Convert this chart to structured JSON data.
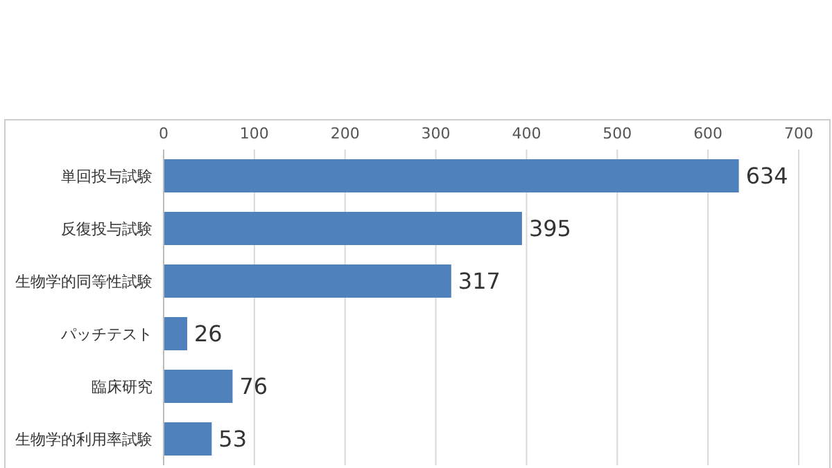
{
  "chart_data": {
    "type": "bar",
    "orientation": "horizontal",
    "categories": [
      "単回投与試験",
      "反復投与試験",
      "生物学的同等性試験",
      "パッチテスト",
      "臨床研究",
      "生物学的利用率試験"
    ],
    "values": [
      634,
      395,
      317,
      26,
      76,
      53
    ],
    "color": "#4f81bd",
    "xlim": [
      0,
      700
    ],
    "xticks": [
      0,
      100,
      200,
      300,
      400,
      500,
      600,
      700
    ],
    "grid": "x",
    "data_labels": true
  }
}
